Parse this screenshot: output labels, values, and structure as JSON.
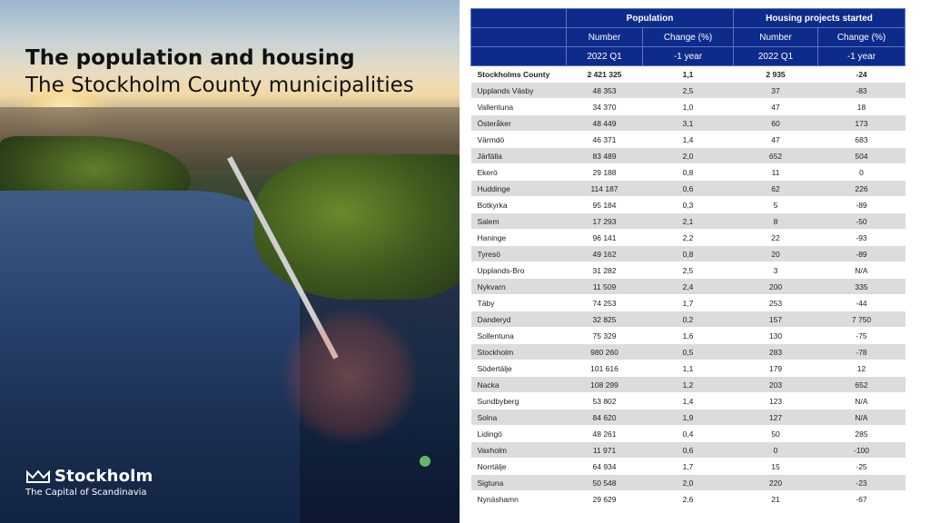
{
  "slide": {
    "title_line1": "The population and housing",
    "title_line2": "The Stockholm County municipalities",
    "logo_name": "Stockholm",
    "logo_tagline": "The Capital of Scandinavia"
  },
  "table": {
    "group_population": "Population",
    "group_housing": "Housing projects started",
    "col_number": "Number",
    "col_change": "Change (%)",
    "period_current": "2022 Q1",
    "period_change": "-1 year",
    "county": {
      "name": "Stockholms County",
      "pop": "2 421 325",
      "pop_change": "1,1",
      "housing": "2 935",
      "housing_change": "-24"
    },
    "rows": [
      {
        "name": "Upplands Väsby",
        "pop": "48 353",
        "pop_change": "2,5",
        "housing": "37",
        "housing_change": "-83"
      },
      {
        "name": "Vallentuna",
        "pop": "34 370",
        "pop_change": "1,0",
        "housing": "47",
        "housing_change": "18"
      },
      {
        "name": "Österåker",
        "pop": "48 449",
        "pop_change": "3,1",
        "housing": "60",
        "housing_change": "173"
      },
      {
        "name": "Värmdö",
        "pop": "46 371",
        "pop_change": "1,4",
        "housing": "47",
        "housing_change": "683"
      },
      {
        "name": "Järfälla",
        "pop": "83 489",
        "pop_change": "2,0",
        "housing": "652",
        "housing_change": "504"
      },
      {
        "name": "Ekerö",
        "pop": "29 188",
        "pop_change": "0,8",
        "housing": "11",
        "housing_change": "0"
      },
      {
        "name": "Huddinge",
        "pop": "114 187",
        "pop_change": "0,6",
        "housing": "62",
        "housing_change": "226"
      },
      {
        "name": "Botkyrka",
        "pop": "95 184",
        "pop_change": "0,3",
        "housing": "5",
        "housing_change": "-89"
      },
      {
        "name": "Salem",
        "pop": "17 293",
        "pop_change": "2,1",
        "housing": "8",
        "housing_change": "-50"
      },
      {
        "name": "Haninge",
        "pop": "96 141",
        "pop_change": "2,2",
        "housing": "22",
        "housing_change": "-93"
      },
      {
        "name": "Tyresö",
        "pop": "49 162",
        "pop_change": "0,8",
        "housing": "20",
        "housing_change": "-89"
      },
      {
        "name": "Upplands-Bro",
        "pop": "31 282",
        "pop_change": "2,5",
        "housing": "3",
        "housing_change": "N/A"
      },
      {
        "name": "Nykvarn",
        "pop": "11 509",
        "pop_change": "2,4",
        "housing": "200",
        "housing_change": "335"
      },
      {
        "name": "Täby",
        "pop": "74 253",
        "pop_change": "1,7",
        "housing": "253",
        "housing_change": "-44"
      },
      {
        "name": "Danderyd",
        "pop": "32 825",
        "pop_change": "0,2",
        "housing": "157",
        "housing_change": "7 750"
      },
      {
        "name": "Sollentuna",
        "pop": "75 329",
        "pop_change": "1,6",
        "housing": "130",
        "housing_change": "-75"
      },
      {
        "name": "Stockholm",
        "pop": "980 260",
        "pop_change": "0,5",
        "housing": "283",
        "housing_change": "-78"
      },
      {
        "name": "Södertälje",
        "pop": "101 616",
        "pop_change": "1,1",
        "housing": "179",
        "housing_change": "12"
      },
      {
        "name": "Nacka",
        "pop": "108 299",
        "pop_change": "1,2",
        "housing": "203",
        "housing_change": "652"
      },
      {
        "name": "Sundbyberg",
        "pop": "53 802",
        "pop_change": "1,4",
        "housing": "123",
        "housing_change": "N/A"
      },
      {
        "name": "Solna",
        "pop": "84 620",
        "pop_change": "1,9",
        "housing": "127",
        "housing_change": "N/A"
      },
      {
        "name": "Lidingö",
        "pop": "48 261",
        "pop_change": "0,4",
        "housing": "50",
        "housing_change": "285"
      },
      {
        "name": "Vaxholm",
        "pop": "11 971",
        "pop_change": "0,6",
        "housing": "0",
        "housing_change": "-100"
      },
      {
        "name": "Norrtälje",
        "pop": "64 934",
        "pop_change": "1,7",
        "housing": "15",
        "housing_change": "-25"
      },
      {
        "name": "Sigtuna",
        "pop": "50 548",
        "pop_change": "2,0",
        "housing": "220",
        "housing_change": "-23"
      },
      {
        "name": "Nynäshamn",
        "pop": "29 629",
        "pop_change": "2,6",
        "housing": "21",
        "housing_change": "-67"
      }
    ]
  }
}
